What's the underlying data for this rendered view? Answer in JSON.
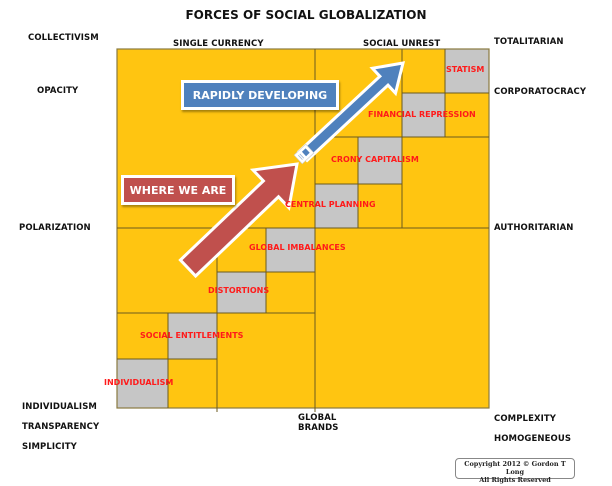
{
  "title": "FORCES OF SOCIAL GLOBALIZATION",
  "colors": {
    "background_cell": "#FFC511",
    "highlight_cell": "#C6C6C6",
    "grid_line": "#6B5A1E",
    "cell_text": "#FF1A1A",
    "rapidly_developing": "#4F81BD",
    "where_we_are": "#C0504D"
  },
  "axis_labels": {
    "top_left_corner": "COLLECTIVISM",
    "top_center_left": "SINGLE CURRENCY",
    "top_center_right": "SOCIAL UNREST",
    "top_right_corner": "TOTALITARIAN",
    "left_upper": "OPACITY",
    "left_middle": "POLARIZATION",
    "left_bottom_1": "INDIVIDUALISM",
    "left_bottom_2": "TRANSPARENCY",
    "left_bottom_3": "SIMPLICITY",
    "right_upper": "CORPORATOCRACY",
    "right_middle": "AUTHORITARIAN",
    "right_bottom_1": "COMPLEXITY",
    "right_bottom_2": "HOMOGENEOUS",
    "bottom_center_1": "GLOBAL",
    "bottom_center_2": "BRANDS"
  },
  "stages": [
    {
      "label": "INDIVIDUALISM",
      "level": 1
    },
    {
      "label": "SOCIAL ENTITLEMENTS",
      "level": 2
    },
    {
      "label": "DISTORTIONS",
      "level": 3
    },
    {
      "label": "GLOBAL IMBALANCES",
      "level": 4
    },
    {
      "label": "CENTRAL PLANNING",
      "level": 5
    },
    {
      "label": "CRONY CAPITALISM",
      "level": 6
    },
    {
      "label": "FINANCIAL REPRESSION",
      "level": 7
    },
    {
      "label": "STATISM",
      "level": 8
    }
  ],
  "banners": {
    "rapidly_developing": "RAPIDLY DEVELOPING",
    "where_we_are": "WHERE WE ARE"
  },
  "copyright": {
    "line1": "Copyright 2012 © Gordon T Long",
    "line2": "All Rights Reserved"
  }
}
